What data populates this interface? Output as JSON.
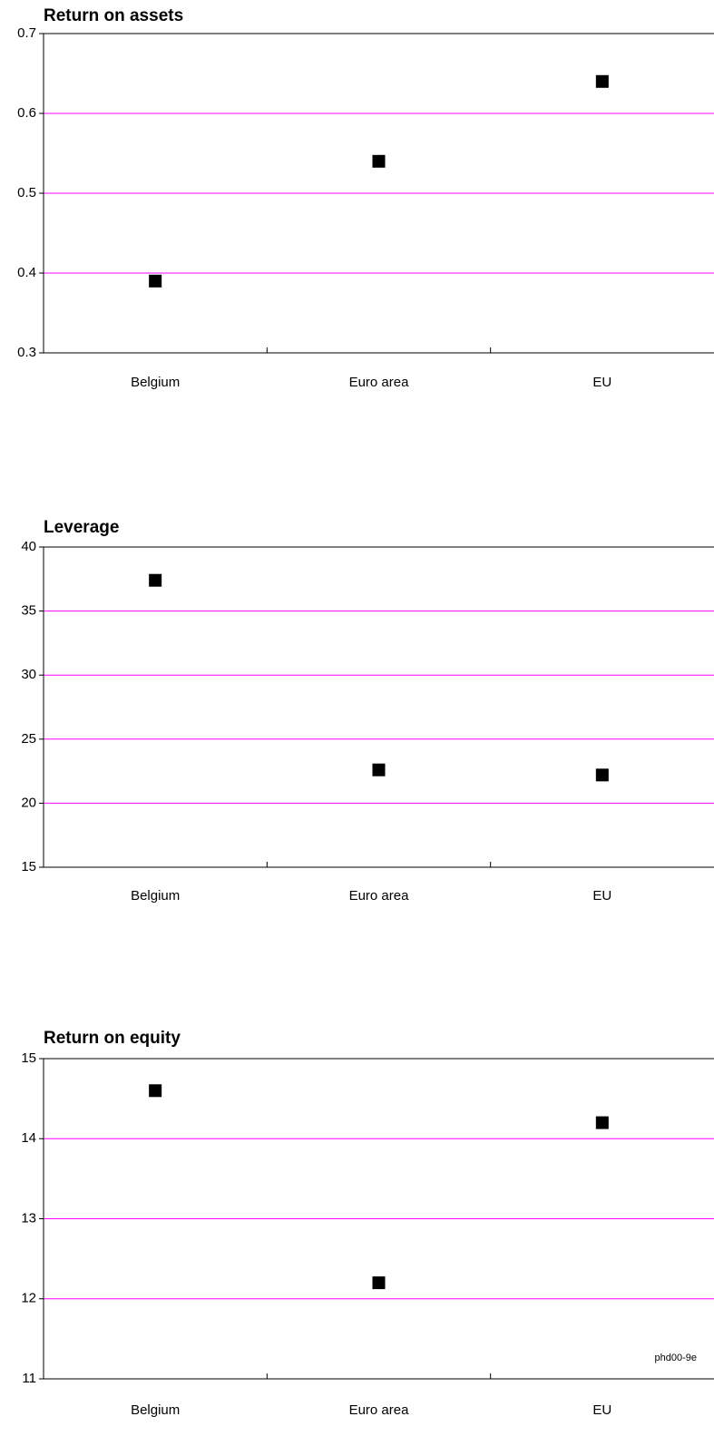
{
  "chart_data": [
    {
      "type": "scatter",
      "title": "Return on assets",
      "categories": [
        "Belgium",
        "Euro area",
        "EU"
      ],
      "values": [
        0.39,
        0.54,
        0.64
      ],
      "color": "#000000",
      "ylim": [
        0.3,
        0.7
      ],
      "yticks": [
        0.3,
        0.4,
        0.5,
        0.6,
        0.7
      ],
      "grid": true,
      "grid_color": "#ff00ff"
    },
    {
      "type": "scatter",
      "title": "Leverage",
      "categories": [
        "Belgium",
        "Euro area",
        "EU"
      ],
      "values": [
        37.4,
        22.6,
        22.2
      ],
      "color": "#000000",
      "ylim": [
        15,
        40
      ],
      "yticks": [
        15,
        20,
        25,
        30,
        35,
        40
      ],
      "grid": true,
      "grid_color": "#ff00ff"
    },
    {
      "type": "scatter",
      "title": "Return on equity",
      "categories": [
        "Belgium",
        "Euro area",
        "EU"
      ],
      "values": [
        14.6,
        12.2,
        14.2
      ],
      "color": "#000000",
      "ylim": [
        11,
        15
      ],
      "yticks": [
        11,
        12,
        13,
        14,
        15
      ],
      "grid": true,
      "grid_color": "#ff00ff",
      "annotation": "phd00-9e"
    }
  ]
}
